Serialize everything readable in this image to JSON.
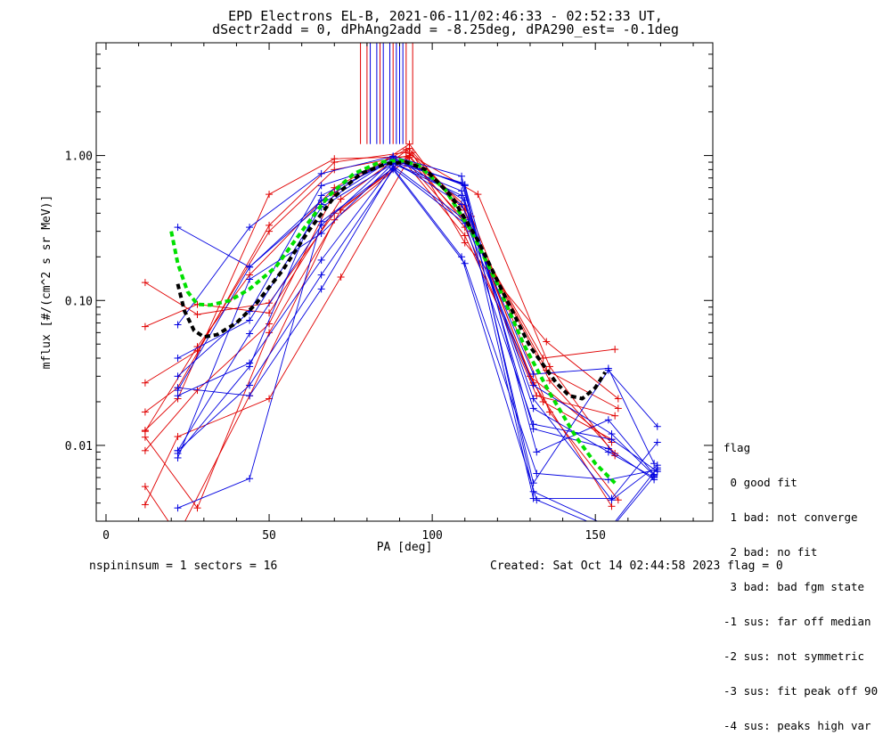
{
  "title": {
    "line1": "EPD Electrons EL-B, 2021-06-11/02:46:33 - 02:52:33 UT,",
    "line2": "dSectr2add = 0, dPhAng2add = -8.25deg, dPA290_est=  -0.1deg"
  },
  "footer": {
    "left": "nspininsum =  1  sectors = 16",
    "right": "Created: Sat Oct 14 02:44:58 2023   flag = 0"
  },
  "legend": {
    "title": "flag",
    "items": [
      " 0 good fit",
      " 1 bad: not converge",
      " 2 bad: no fit",
      " 3 bad: bad fgm state",
      "-1 sus: far off median",
      "-2 sus: not symmetric",
      "-3 sus: fit peak off 90",
      "-4 sus: peaks high var"
    ]
  },
  "colors": {
    "red": "#e00000",
    "blue": "#0000e0",
    "green": "#00e000",
    "black": "#000000"
  },
  "chart_data": {
    "type": "line",
    "xlabel": "PA [deg]",
    "ylabel": "mflux [#/(cm^2 s sr MeV)]",
    "xlim": [
      -3,
      186
    ],
    "ylim": [
      0.003,
      6
    ],
    "ylog": true,
    "xticks": [
      0,
      50,
      100,
      150
    ],
    "xtick_labels": [
      "0",
      "50",
      "100",
      "150"
    ],
    "yticks": [
      0.01,
      0.1,
      1.0
    ],
    "ytick_labels": [
      "0.01",
      "0.10",
      "1.00"
    ],
    "grid": false,
    "peak_markers": {
      "red_x": [
        78,
        80,
        84,
        88,
        92,
        94
      ],
      "blue_x": [
        81,
        83,
        85,
        87,
        89,
        90,
        91
      ],
      "y_from": 1.2
    },
    "series": [
      {
        "color": "red",
        "x": [
          12,
          22,
          44,
          70,
          93,
          110,
          131,
          155
        ],
        "y": [
          0.0052,
          0.0024,
          0.022,
          0.36,
          0.97,
          0.42,
          0.027,
          0.0038
        ]
      },
      {
        "color": "red",
        "x": [
          12,
          28,
          50,
          72,
          94,
          112,
          136,
          157
        ],
        "y": [
          0.0114,
          0.0037,
          0.06,
          0.42,
          1.05,
          0.38,
          0.017,
          0.0042
        ]
      },
      {
        "color": "red",
        "x": [
          12,
          22,
          50,
          70,
          92,
          110,
          134,
          156
        ],
        "y": [
          0.0127,
          0.021,
          0.54,
          0.95,
          0.98,
          0.36,
          0.04,
          0.046
        ]
      },
      {
        "color": "red",
        "x": [
          12,
          28,
          50,
          70,
          92,
          110,
          132,
          156
        ],
        "y": [
          0.133,
          0.08,
          0.096,
          0.4,
          0.92,
          0.32,
          0.022,
          0.016
        ]
      },
      {
        "color": "red",
        "x": [
          12,
          28,
          50,
          72,
          93,
          110,
          135,
          157
        ],
        "y": [
          0.066,
          0.094,
          0.082,
          0.5,
          1.12,
          0.25,
          0.052,
          0.021
        ]
      },
      {
        "color": "red",
        "x": [
          12,
          22,
          50,
          70,
          92,
          114,
          136,
          156
        ],
        "y": [
          0.017,
          0.025,
          0.33,
          0.9,
          1.05,
          0.54,
          0.035,
          0.0085
        ]
      },
      {
        "color": "red",
        "x": [
          12,
          28,
          50,
          70,
          93,
          110,
          135,
          157
        ],
        "y": [
          0.0092,
          0.024,
          0.069,
          0.55,
          1.2,
          0.37,
          0.033,
          0.018
        ]
      },
      {
        "color": "red",
        "x": [
          12,
          28,
          50,
          70,
          93,
          112,
          136,
          156
        ],
        "y": [
          0.027,
          0.045,
          0.3,
          0.8,
          1.0,
          0.3,
          0.028,
          0.0088
        ]
      },
      {
        "color": "red",
        "x": [
          12,
          22,
          50,
          72,
          92,
          110,
          134,
          155
        ],
        "y": [
          0.0039,
          0.0115,
          0.021,
          0.145,
          0.88,
          0.28,
          0.02,
          0.011
        ]
      },
      {
        "color": "red",
        "x": [
          12,
          28,
          44,
          70,
          92,
          110,
          130,
          155
        ],
        "y": [
          0.0125,
          0.048,
          0.15,
          0.6,
          1.1,
          0.45,
          0.03,
          0.0105
        ]
      },
      {
        "color": "blue",
        "x": [
          22,
          44,
          66,
          88,
          110,
          131,
          155,
          169
        ],
        "y": [
          0.32,
          0.17,
          0.49,
          0.98,
          0.49,
          0.0043,
          0.0043,
          0.0105
        ]
      },
      {
        "color": "blue",
        "x": [
          22,
          44,
          66,
          88,
          109,
          131,
          154,
          169
        ],
        "y": [
          0.068,
          0.32,
          0.75,
          0.99,
          0.72,
          0.0055,
          0.033,
          0.0135
        ]
      },
      {
        "color": "blue",
        "x": [
          22,
          44,
          66,
          88,
          109,
          131,
          154,
          168
        ],
        "y": [
          0.0088,
          0.035,
          0.53,
          0.92,
          0.46,
          0.031,
          0.034,
          0.0075
        ]
      },
      {
        "color": "blue",
        "x": [
          22,
          44,
          66,
          88,
          110,
          132,
          154,
          168
        ],
        "y": [
          0.0092,
          0.059,
          0.33,
          0.93,
          0.63,
          0.009,
          0.015,
          0.0063
        ]
      },
      {
        "color": "blue",
        "x": [
          22,
          44,
          66,
          88,
          110,
          131,
          155,
          169
        ],
        "y": [
          0.025,
          0.022,
          0.12,
          0.82,
          0.34,
          0.014,
          0.011,
          0.0066
        ]
      },
      {
        "color": "blue",
        "x": [
          22,
          44,
          66,
          88,
          109,
          131,
          154,
          168
        ],
        "y": [
          0.04,
          0.073,
          0.44,
          0.88,
          0.57,
          0.018,
          0.009,
          0.006
        ]
      },
      {
        "color": "blue",
        "x": [
          22,
          44,
          66,
          88,
          109,
          132,
          154,
          169
        ],
        "y": [
          0.0037,
          0.0059,
          0.35,
          0.82,
          0.2,
          0.0042,
          0.0026,
          0.007
        ]
      },
      {
        "color": "blue",
        "x": [
          22,
          44,
          66,
          88,
          110,
          131,
          155,
          168
        ],
        "y": [
          0.022,
          0.037,
          0.19,
          0.85,
          0.36,
          0.026,
          0.012,
          0.0062
        ]
      },
      {
        "color": "blue",
        "x": [
          22,
          44,
          66,
          88,
          109,
          131,
          154,
          168
        ],
        "y": [
          0.03,
          0.084,
          0.62,
          0.9,
          0.65,
          0.013,
          0.0095,
          0.0058
        ]
      },
      {
        "color": "blue",
        "x": [
          22,
          44,
          66,
          88,
          110,
          132,
          154,
          169
        ],
        "y": [
          0.0092,
          0.026,
          0.15,
          0.8,
          0.18,
          0.0064,
          0.0058,
          0.0068
        ]
      },
      {
        "color": "blue",
        "x": [
          22,
          44,
          66,
          88,
          110,
          131,
          155,
          168
        ],
        "y": [
          0.024,
          0.17,
          0.46,
          0.95,
          0.62,
          0.0048,
          0.0027,
          0.0061
        ]
      },
      {
        "color": "blue",
        "x": [
          22,
          44,
          66,
          88,
          109,
          131,
          155,
          169
        ],
        "y": [
          0.0082,
          0.14,
          0.29,
          0.88,
          0.53,
          0.021,
          0.0042,
          0.0073
        ]
      }
    ],
    "fits": [
      {
        "color": "green",
        "x": [
          20,
          22,
          25,
          28,
          32,
          38,
          44,
          52,
          60,
          68,
          76,
          84,
          90,
          96,
          104,
          112,
          120,
          128,
          136,
          144,
          150,
          156
        ],
        "y": [
          0.3,
          0.18,
          0.115,
          0.094,
          0.093,
          0.1,
          0.12,
          0.17,
          0.3,
          0.52,
          0.75,
          0.9,
          0.93,
          0.85,
          0.58,
          0.3,
          0.13,
          0.05,
          0.023,
          0.0115,
          0.0075,
          0.0055
        ]
      },
      {
        "color": "black",
        "x": [
          22,
          24,
          27,
          30,
          34,
          40,
          46,
          54,
          62,
          70,
          78,
          86,
          92,
          98,
          106,
          114,
          122,
          130,
          138,
          142,
          146,
          150,
          153
        ],
        "y": [
          0.13,
          0.085,
          0.062,
          0.056,
          0.058,
          0.07,
          0.095,
          0.16,
          0.3,
          0.52,
          0.75,
          0.88,
          0.9,
          0.8,
          0.52,
          0.26,
          0.11,
          0.048,
          0.027,
          0.022,
          0.021,
          0.025,
          0.032
        ]
      }
    ]
  }
}
